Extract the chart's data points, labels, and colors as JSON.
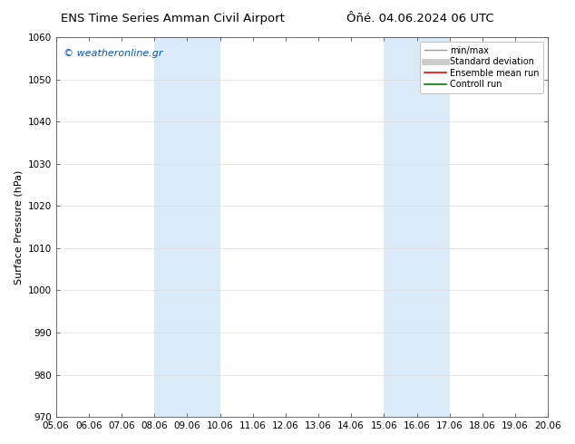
{
  "title_left": "ENS Time Series Amman Civil Airport",
  "title_right": "Ôñé. 04.06.2024 06 UTC",
  "ylabel": "Surface Pressure (hPa)",
  "ylim": [
    970,
    1060
  ],
  "yticks": [
    970,
    980,
    990,
    1000,
    1010,
    1020,
    1030,
    1040,
    1050,
    1060
  ],
  "x_min": 0,
  "x_max": 15,
  "xtick_labels": [
    "05.06",
    "06.06",
    "07.06",
    "08.06",
    "09.06",
    "10.06",
    "11.06",
    "12.06",
    "13.06",
    "14.06",
    "15.06",
    "16.06",
    "17.06",
    "18.06",
    "19.06",
    "20.06"
  ],
  "shaded_bands": [
    {
      "x_start": 3,
      "x_end": 5,
      "color": "#daeaf7"
    },
    {
      "x_start": 10,
      "x_end": 12,
      "color": "#daeaf7"
    }
  ],
  "watermark_text": "© weatheronline.gr",
  "watermark_color": "#0055cc",
  "legend_items": [
    {
      "label": "min/max",
      "color": "#999999",
      "lw": 1.0,
      "ls": "-"
    },
    {
      "label": "Standard deviation",
      "color": "#cccccc",
      "lw": 5,
      "ls": "-"
    },
    {
      "label": "Ensemble mean run",
      "color": "#ff0000",
      "lw": 1.2,
      "ls": "-"
    },
    {
      "label": "Controll run",
      "color": "#008000",
      "lw": 1.2,
      "ls": "-"
    }
  ],
  "bg_color": "#ffffff",
  "plot_bg_color": "#ffffff",
  "spine_color": "#555555",
  "grid_color": "#dddddd",
  "title_fontsize": 9.5,
  "label_fontsize": 8,
  "tick_fontsize": 7.5,
  "legend_fontsize": 7
}
